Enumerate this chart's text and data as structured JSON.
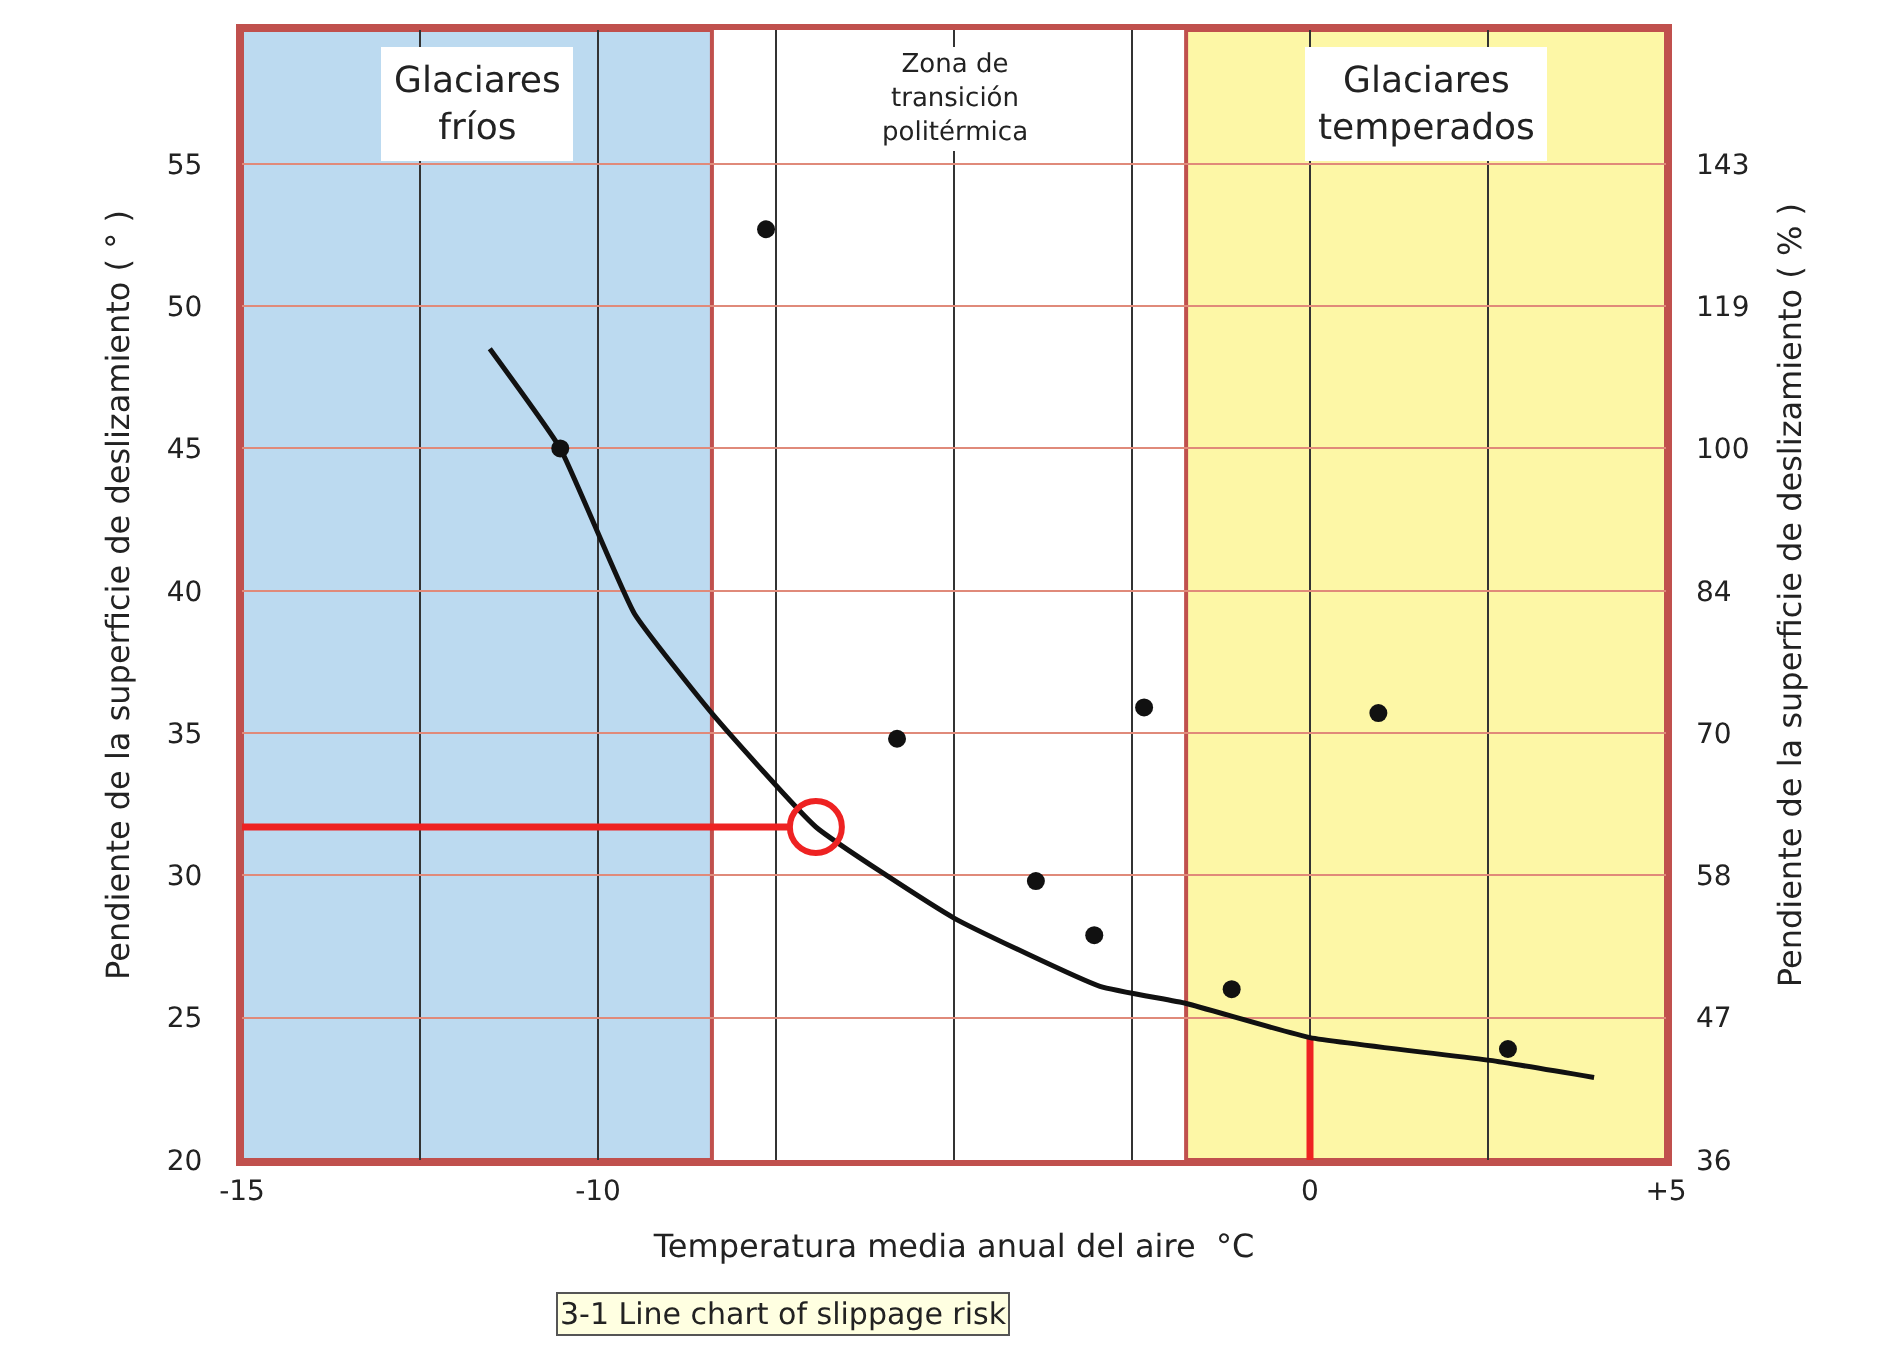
{
  "chart_data": {
    "type": "scatter",
    "xlabel": "Temperatura media anual del aire  °C",
    "ylabel": "Pendiente de la superficie de deslizamiento ( ° )",
    "y2label": "Pendiente de la superficie de deslizamiento ( % )",
    "xlim": [
      -15,
      5
    ],
    "xticks": [
      -15,
      {
        "value": -12.5,
        "label": null
      },
      -10,
      {
        "value": -7.5,
        "label": null
      },
      {
        "value": -5,
        "label": null
      },
      {
        "value": -2.5,
        "label": null
      },
      0,
      {
        "value": 2.5,
        "label": null
      },
      {
        "value": 5,
        "label": "+5"
      }
    ],
    "ylim": [
      20,
      59.7
    ],
    "yticks": [
      20,
      25,
      30,
      35,
      40,
      45,
      50,
      55
    ],
    "y2_categories": [
      "143",
      "119",
      "100",
      "84",
      "70",
      "58",
      "47",
      "36"
    ],
    "grid": true,
    "series": [
      {
        "type": "line",
        "color": "#ee2222",
        "x": [
          -15,
          -7.3
        ],
        "values": [
          31.7,
          31.7
        ]
      },
      {
        "type": "line",
        "color": "#ee2222",
        "x": [
          0,
          0
        ],
        "values": [
          20,
          24.3
        ]
      },
      {
        "type": "line",
        "color": "#111111",
        "x": [
          -11.52,
          -10.53,
          -9.49,
          -8.37,
          -6.94,
          -5.0,
          -2.95,
          -1.74,
          0,
          2.53,
          3.99
        ],
        "values": [
          48.5,
          45.0,
          39.2,
          35.6,
          31.7,
          28.5,
          26.1,
          25.5,
          24.3,
          23.5,
          22.9
        ]
      },
      {
        "marker": "circle",
        "color": "#111111",
        "x": [
          -10.53,
          -7.64,
          -5.8,
          -3.85,
          -3.03,
          -2.33,
          -1.1,
          0.96,
          2.78
        ],
        "values": [
          45.0,
          52.7,
          34.8,
          29.8,
          27.9,
          35.9,
          26.0,
          35.7,
          23.9
        ]
      },
      {
        "type": "scatter",
        "marker": "circle",
        "color": "#ee2222",
        "x": [
          -6.94
        ],
        "values": [
          31.7
        ]
      }
    ],
    "bands": [
      {
        "axis": "x",
        "from": -15,
        "to": -8.4,
        "label": "Glaciares\nfríos",
        "color": "#bcdaf0"
      },
      {
        "axis": "x",
        "from": -1.74,
        "to": 5,
        "label": "Glaciares\ntemperados",
        "color": "#fdf7a6"
      }
    ],
    "annotations": [
      "Zona de\ntransición\npolitérmica",
      "3-1 Line chart of slippage risk"
    ]
  }
}
